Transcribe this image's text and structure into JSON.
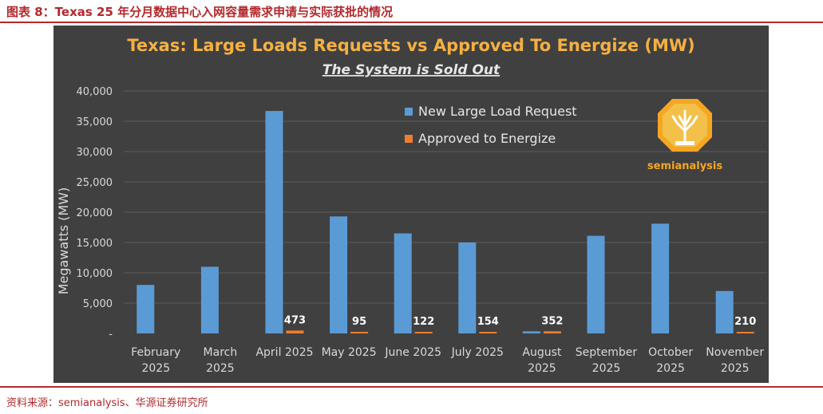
{
  "figure": {
    "caption": "图表 8：Texas 25 年分月数据中心入网容量需求申请与实际获批的情况",
    "source": "资料来源：semianalysis、华源证券研究所"
  },
  "chart_data": {
    "type": "bar",
    "title": "Texas: Large Loads Requests vs Approved To Energize (MW)",
    "subtitle": "The System is Sold Out",
    "ylabel": "Megawatts (MW)",
    "xlabel": "",
    "ylim": [
      0,
      40000
    ],
    "yticks": [
      0,
      5000,
      10000,
      15000,
      20000,
      25000,
      30000,
      35000,
      40000
    ],
    "ytick_labels": [
      "-",
      "5,000",
      "10,000",
      "15,000",
      "20,000",
      "25,000",
      "30,000",
      "35,000",
      "40,000"
    ],
    "categories": [
      [
        "February",
        "2025"
      ],
      [
        "March",
        "2025"
      ],
      [
        "April 2025"
      ],
      [
        "May 2025"
      ],
      [
        "June 2025"
      ],
      [
        "July 2025"
      ],
      [
        "August",
        "2025"
      ],
      [
        "September",
        "2025"
      ],
      [
        "October",
        "2025"
      ],
      [
        "November",
        "2025"
      ]
    ],
    "series": [
      {
        "name": "New Large Load Request",
        "color": "#5b9bd5",
        "values": [
          8000,
          11000,
          36700,
          19300,
          16500,
          15000,
          350,
          16100,
          18100,
          7000
        ]
      },
      {
        "name": "Approved to Energize",
        "color": "#ed7d31",
        "values": [
          null,
          null,
          473,
          95,
          122,
          154,
          352,
          null,
          null,
          210
        ],
        "labels": [
          null,
          null,
          "473",
          "95",
          "122",
          "154",
          "352",
          null,
          null,
          "210"
        ]
      }
    ],
    "legend_position": "top-right",
    "grid": true,
    "logo_text": "semianalysis"
  }
}
